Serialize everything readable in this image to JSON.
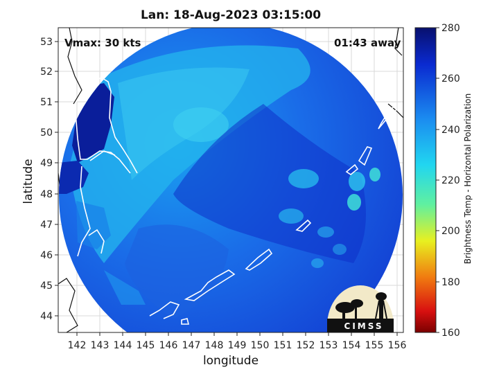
{
  "header": {
    "title": "Lan: 18-Aug-2023 03:15:00",
    "vmax": "Vmax: 30 kts",
    "time_away": "01:43 away"
  },
  "axes": {
    "xlabel": "longitude",
    "ylabel": "latitude",
    "xticks": [
      "142",
      "143",
      "144",
      "145",
      "146",
      "147",
      "148",
      "149",
      "150",
      "151",
      "152",
      "153",
      "154",
      "155",
      "156"
    ],
    "yticks": [
      "53",
      "52",
      "51",
      "50",
      "49",
      "48",
      "47",
      "46",
      "45",
      "44"
    ]
  },
  "colorbar": {
    "label": "Brightness Temp - Horizontal Polarization",
    "ticks": [
      "280",
      "260",
      "240",
      "220",
      "200",
      "180",
      "160"
    ]
  },
  "logo": {
    "text": "CIMSS"
  }
}
